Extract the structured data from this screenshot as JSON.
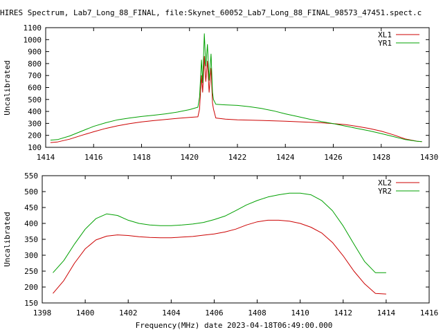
{
  "page_title": "HIRES Spectrum, Lab7_Long_88_FINAL, file:Skynet_60052_Lab7_Long_88_FINAL_98573_47451.spect.c",
  "bottom_xlabel": "Frequency(MHz) date 2023-04-18T06:49:00.000",
  "colors": {
    "red": "#cc0000",
    "green": "#00a000",
    "axis": "#000000"
  },
  "chart_data": [
    {
      "type": "line",
      "ylabel": "Uncalibrated",
      "xlim": [
        1414,
        1430
      ],
      "ylim": [
        100,
        1100
      ],
      "xticks": [
        "1414",
        "1416",
        "1418",
        "1420",
        "1422",
        "1424",
        "1426",
        "1428",
        "1430"
      ],
      "yticks": [
        "100",
        "200",
        "300",
        "400",
        "500",
        "600",
        "700",
        "800",
        "900",
        "1000",
        "1100"
      ],
      "grid": false,
      "legend_position": "top-right",
      "series": [
        {
          "name": "XL1",
          "color": "#cc0000",
          "points": [
            [
              1414.2,
              140
            ],
            [
              1414.5,
              145
            ],
            [
              1415,
              168
            ],
            [
              1415.5,
              200
            ],
            [
              1416,
              230
            ],
            [
              1416.5,
              258
            ],
            [
              1417,
              280
            ],
            [
              1417.5,
              298
            ],
            [
              1418,
              312
            ],
            [
              1418.5,
              323
            ],
            [
              1419,
              333
            ],
            [
              1419.5,
              342
            ],
            [
              1420,
              350
            ],
            [
              1420.35,
              355
            ],
            [
              1420.42,
              420
            ],
            [
              1420.5,
              700
            ],
            [
              1420.55,
              560
            ],
            [
              1420.62,
              860
            ],
            [
              1420.68,
              650
            ],
            [
              1420.75,
              820
            ],
            [
              1420.82,
              560
            ],
            [
              1420.9,
              760
            ],
            [
              1420.96,
              470
            ],
            [
              1421,
              420
            ],
            [
              1421.1,
              345
            ],
            [
              1421.5,
              335
            ],
            [
              1422,
              330
            ],
            [
              1423,
              325
            ],
            [
              1424,
              318
            ],
            [
              1425,
              310
            ],
            [
              1425.5,
              305
            ],
            [
              1426,
              298
            ],
            [
              1426.5,
              290
            ],
            [
              1427,
              275
            ],
            [
              1427.5,
              258
            ],
            [
              1428,
              235
            ],
            [
              1428.5,
              205
            ],
            [
              1429,
              170
            ],
            [
              1429.5,
              150
            ],
            [
              1429.7,
              148
            ]
          ]
        },
        {
          "name": "YR1",
          "color": "#00a000",
          "points": [
            [
              1414.2,
              160
            ],
            [
              1414.5,
              165
            ],
            [
              1415,
              195
            ],
            [
              1415.5,
              235
            ],
            [
              1416,
              275
            ],
            [
              1416.5,
              305
            ],
            [
              1417,
              330
            ],
            [
              1417.5,
              345
            ],
            [
              1418,
              358
            ],
            [
              1418.5,
              368
            ],
            [
              1419,
              380
            ],
            [
              1419.5,
              395
            ],
            [
              1420,
              415
            ],
            [
              1420.35,
              435
            ],
            [
              1420.42,
              520
            ],
            [
              1420.5,
              830
            ],
            [
              1420.55,
              640
            ],
            [
              1420.62,
              1050
            ],
            [
              1420.68,
              780
            ],
            [
              1420.75,
              960
            ],
            [
              1420.82,
              660
            ],
            [
              1420.9,
              880
            ],
            [
              1420.96,
              560
            ],
            [
              1421,
              500
            ],
            [
              1421.1,
              460
            ],
            [
              1421.5,
              455
            ],
            [
              1422,
              450
            ],
            [
              1422.5,
              440
            ],
            [
              1423,
              425
            ],
            [
              1423.5,
              405
            ],
            [
              1424,
              380
            ],
            [
              1424.5,
              358
            ],
            [
              1425,
              335
            ],
            [
              1425.5,
              315
            ],
            [
              1426,
              298
            ],
            [
              1426.5,
              278
            ],
            [
              1427,
              258
            ],
            [
              1427.5,
              238
            ],
            [
              1428,
              215
            ],
            [
              1428.5,
              190
            ],
            [
              1429,
              165
            ],
            [
              1429.5,
              150
            ],
            [
              1429.7,
              148
            ]
          ]
        }
      ]
    },
    {
      "type": "line",
      "ylabel": "Uncalibrated",
      "xlim": [
        1398,
        1416
      ],
      "ylim": [
        150,
        550
      ],
      "xticks": [
        "1398",
        "1400",
        "1402",
        "1404",
        "1406",
        "1408",
        "1410",
        "1412",
        "1414",
        "1416"
      ],
      "yticks": [
        "150",
        "200",
        "250",
        "300",
        "350",
        "400",
        "450",
        "500",
        "550"
      ],
      "grid": false,
      "legend_position": "top-right",
      "series": [
        {
          "name": "XL2",
          "color": "#cc0000",
          "points": [
            [
              1398.5,
              180
            ],
            [
              1399,
              220
            ],
            [
              1399.5,
              275
            ],
            [
              1400,
              320
            ],
            [
              1400.5,
              348
            ],
            [
              1401,
              360
            ],
            [
              1401.5,
              364
            ],
            [
              1402,
              362
            ],
            [
              1402.5,
              358
            ],
            [
              1403,
              356
            ],
            [
              1403.5,
              355
            ],
            [
              1404,
              355
            ],
            [
              1404.5,
              357
            ],
            [
              1405,
              359
            ],
            [
              1405.5,
              363
            ],
            [
              1406,
              367
            ],
            [
              1406.5,
              373
            ],
            [
              1407,
              382
            ],
            [
              1407.5,
              395
            ],
            [
              1408,
              405
            ],
            [
              1408.5,
              410
            ],
            [
              1409,
              410
            ],
            [
              1409.5,
              407
            ],
            [
              1410,
              400
            ],
            [
              1410.5,
              388
            ],
            [
              1411,
              370
            ],
            [
              1411.5,
              340
            ],
            [
              1412,
              298
            ],
            [
              1412.5,
              250
            ],
            [
              1413,
              210
            ],
            [
              1413.5,
              180
            ],
            [
              1414,
              178
            ]
          ]
        },
        {
          "name": "YR2",
          "color": "#00a000",
          "points": [
            [
              1398.5,
              245
            ],
            [
              1399,
              283
            ],
            [
              1399.5,
              335
            ],
            [
              1400,
              382
            ],
            [
              1400.5,
              415
            ],
            [
              1401,
              430
            ],
            [
              1401.5,
              425
            ],
            [
              1402,
              410
            ],
            [
              1402.5,
              400
            ],
            [
              1403,
              395
            ],
            [
              1403.5,
              393
            ],
            [
              1404,
              393
            ],
            [
              1404.5,
              395
            ],
            [
              1405,
              398
            ],
            [
              1405.5,
              403
            ],
            [
              1406,
              412
            ],
            [
              1406.5,
              423
            ],
            [
              1407,
              440
            ],
            [
              1407.5,
              458
            ],
            [
              1408,
              472
            ],
            [
              1408.5,
              483
            ],
            [
              1409,
              490
            ],
            [
              1409.5,
              495
            ],
            [
              1410,
              495
            ],
            [
              1410.5,
              490
            ],
            [
              1411,
              472
            ],
            [
              1411.5,
              440
            ],
            [
              1412,
              392
            ],
            [
              1412.5,
              335
            ],
            [
              1413,
              280
            ],
            [
              1413.5,
              245
            ],
            [
              1414,
              245
            ]
          ]
        }
      ]
    }
  ]
}
